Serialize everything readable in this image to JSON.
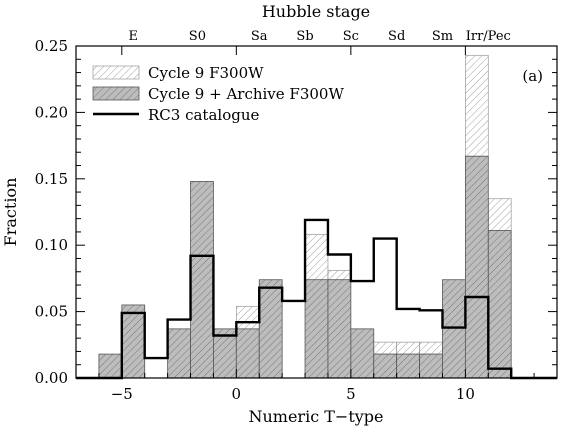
{
  "chart_data": {
    "type": "histogram",
    "title": "",
    "panel_label": "(a)",
    "xlabel": "Numeric T−type",
    "ylabel": "Fraction",
    "top_axis_title": "Hubble stage",
    "xlim": [
      -7,
      14
    ],
    "ylim": [
      0,
      0.25
    ],
    "x_ticks": [
      -5,
      0,
      5,
      10
    ],
    "x_tick_labels": [
      "−5",
      "0",
      "5",
      "10"
    ],
    "y_ticks": [
      0,
      0.05,
      0.1,
      0.15,
      0.2,
      0.25
    ],
    "y_tick_labels": [
      "0.00",
      "0.05",
      "0.10",
      "0.15",
      "0.20",
      "0.25"
    ],
    "top_stages": [
      {
        "label": "E",
        "t": -4.5
      },
      {
        "label": "S0",
        "t": -1.7
      },
      {
        "label": "Sa",
        "t": 1.0
      },
      {
        "label": "Sb",
        "t": 3.0
      },
      {
        "label": "Sc",
        "t": 5.0
      },
      {
        "label": "Sd",
        "t": 7.0
      },
      {
        "label": "Sm",
        "t": 9.0
      },
      {
        "label": "Irr/Pec",
        "t": 11.0
      }
    ],
    "bins": [
      -6,
      -5,
      -4,
      -3,
      -2,
      -1,
      0,
      1,
      2,
      3,
      4,
      5,
      6,
      7,
      8,
      9,
      10,
      11
    ],
    "bin_width": 1,
    "series": [
      {
        "name": "Cycle 9 F300W",
        "style": "hatched",
        "values": [
          0.0,
          0.027,
          0.0,
          0.027,
          0.135,
          0.027,
          0.054,
          0.027,
          0.0,
          0.108,
          0.081,
          0.027,
          0.027,
          0.027,
          0.027,
          0.054,
          0.243,
          0.135
        ]
      },
      {
        "name": "Cycle 9 + Archive F300W",
        "style": "gray-filled-hatched",
        "values": [
          0.018,
          0.055,
          0.0,
          0.037,
          0.148,
          0.037,
          0.037,
          0.074,
          0.0,
          0.074,
          0.074,
          0.037,
          0.018,
          0.018,
          0.018,
          0.074,
          0.167,
          0.111
        ]
      },
      {
        "name": "RC3 catalogue",
        "style": "black-step",
        "values": [
          0.0,
          0.049,
          0.015,
          0.044,
          0.092,
          0.032,
          0.042,
          0.068,
          0.058,
          0.119,
          0.093,
          0.073,
          0.105,
          0.052,
          0.051,
          0.038,
          0.061,
          0.007
        ]
      }
    ],
    "legend_position": "top-left",
    "colors": {
      "gray_fill": "#bdbdbd",
      "hatch": "#6e6e6e",
      "rc3_line": "#000000"
    }
  }
}
